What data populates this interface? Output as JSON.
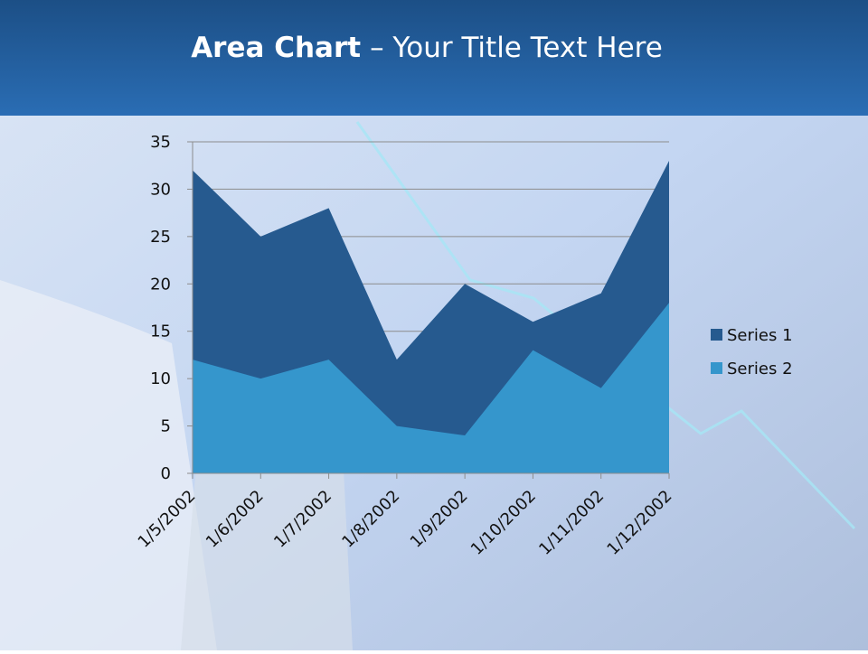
{
  "chart_data": {
    "type": "area",
    "title": {
      "bold": "Area Chart",
      "regular": "– Your Title Text Here"
    },
    "categories": [
      "1/5/2002",
      "1/6/2002",
      "1/7/2002",
      "1/8/2002",
      "1/9/2002",
      "1/10/2002",
      "1/11/2002",
      "1/12/2002"
    ],
    "series": [
      {
        "name": "Series 1",
        "color": "#265a8f",
        "values": [
          32,
          25,
          28,
          12,
          20,
          16,
          19,
          33
        ]
      },
      {
        "name": "Series 2",
        "color": "#3596cc",
        "values": [
          12,
          10,
          12,
          5,
          4,
          13,
          9,
          18
        ]
      }
    ],
    "ylim": [
      0,
      35
    ],
    "yticks": [
      0,
      5,
      10,
      15,
      20,
      25,
      30,
      35
    ],
    "grid": true,
    "legend": "right"
  }
}
